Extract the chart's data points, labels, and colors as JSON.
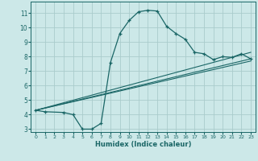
{
  "xlabel": "Humidex (Indice chaleur)",
  "bg_color": "#cce8e8",
  "grid_color": "#aacccc",
  "line_color": "#1a6666",
  "xlim": [
    -0.5,
    23.5
  ],
  "ylim": [
    2.8,
    11.8
  ],
  "xticks": [
    0,
    1,
    2,
    3,
    4,
    5,
    6,
    7,
    8,
    9,
    10,
    11,
    12,
    13,
    14,
    15,
    16,
    17,
    18,
    19,
    20,
    21,
    22,
    23
  ],
  "yticks": [
    3,
    4,
    5,
    6,
    7,
    8,
    9,
    10,
    11
  ],
  "main_curve": {
    "x": [
      0,
      1,
      3,
      4,
      5,
      6,
      7,
      8,
      9,
      10,
      11,
      12,
      13,
      14,
      15,
      16,
      17,
      18,
      19,
      20,
      21,
      22,
      23
    ],
    "y": [
      4.3,
      4.2,
      4.15,
      4.0,
      3.0,
      3.0,
      3.4,
      7.6,
      9.6,
      10.5,
      11.1,
      11.2,
      11.15,
      10.1,
      9.6,
      9.2,
      8.3,
      8.2,
      7.8,
      8.0,
      7.95,
      8.2,
      7.85
    ]
  },
  "diag_lines": [
    {
      "x": [
        0,
        23
      ],
      "y": [
        4.3,
        8.3
      ]
    },
    {
      "x": [
        0,
        23
      ],
      "y": [
        4.3,
        7.7
      ]
    },
    {
      "x": [
        0,
        23
      ],
      "y": [
        4.3,
        7.85
      ]
    }
  ]
}
